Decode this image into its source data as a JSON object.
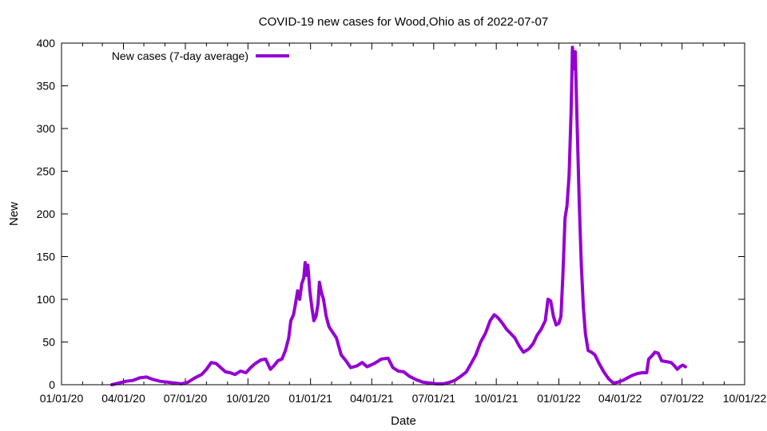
{
  "chart_data": {
    "type": "line",
    "title": "COVID-19 new cases for Wood,Ohio as of 2022-07-07",
    "xlabel": "Date",
    "ylabel": "New",
    "xlim": [
      "2020-01-01",
      "2022-10-01"
    ],
    "ylim": [
      0,
      400
    ],
    "x_ticks": [
      "01/01/20",
      "04/01/20",
      "07/01/20",
      "10/01/20",
      "01/01/21",
      "04/01/21",
      "07/01/21",
      "10/01/21",
      "01/01/22",
      "04/01/22",
      "07/01/22",
      "10/01/22"
    ],
    "x_tick_dates": [
      "2020-01-01",
      "2020-04-01",
      "2020-07-01",
      "2020-10-01",
      "2021-01-01",
      "2021-04-01",
      "2021-07-01",
      "2021-10-01",
      "2022-01-01",
      "2022-04-01",
      "2022-07-01",
      "2022-10-01"
    ],
    "y_ticks": [
      "0",
      "50",
      "100",
      "150",
      "200",
      "250",
      "300",
      "350",
      "400"
    ],
    "y_tick_values": [
      0,
      50,
      100,
      150,
      200,
      250,
      300,
      350,
      400
    ],
    "grid": false,
    "legend": {
      "placement": "top-left"
    },
    "series": [
      {
        "name": "New cases (7-day average)",
        "color": "#9400d3",
        "points": [
          [
            "2020-03-15",
            0
          ],
          [
            "2020-03-25",
            2
          ],
          [
            "2020-04-05",
            4
          ],
          [
            "2020-04-15",
            5
          ],
          [
            "2020-04-25",
            8
          ],
          [
            "2020-05-05",
            9
          ],
          [
            "2020-05-15",
            6
          ],
          [
            "2020-05-25",
            4
          ],
          [
            "2020-06-05",
            3
          ],
          [
            "2020-06-15",
            2
          ],
          [
            "2020-06-25",
            1
          ],
          [
            "2020-07-05",
            3
          ],
          [
            "2020-07-15",
            8
          ],
          [
            "2020-07-25",
            12
          ],
          [
            "2020-08-01",
            18
          ],
          [
            "2020-08-08",
            26
          ],
          [
            "2020-08-15",
            25
          ],
          [
            "2020-08-22",
            20
          ],
          [
            "2020-08-29",
            15
          ],
          [
            "2020-09-05",
            14
          ],
          [
            "2020-09-12",
            12
          ],
          [
            "2020-09-20",
            16
          ],
          [
            "2020-09-28",
            14
          ],
          [
            "2020-10-05",
            20
          ],
          [
            "2020-10-12",
            25
          ],
          [
            "2020-10-20",
            29
          ],
          [
            "2020-10-27",
            30
          ],
          [
            "2020-11-03",
            18
          ],
          [
            "2020-11-08",
            22
          ],
          [
            "2020-11-14",
            28
          ],
          [
            "2020-11-20",
            30
          ],
          [
            "2020-11-25",
            40
          ],
          [
            "2020-11-30",
            55
          ],
          [
            "2020-12-03",
            75
          ],
          [
            "2020-12-07",
            82
          ],
          [
            "2020-12-10",
            95
          ],
          [
            "2020-12-13",
            110
          ],
          [
            "2020-12-16",
            100
          ],
          [
            "2020-12-19",
            118
          ],
          [
            "2020-12-22",
            125
          ],
          [
            "2020-12-24",
            143
          ],
          [
            "2020-12-26",
            128
          ],
          [
            "2020-12-28",
            140
          ],
          [
            "2020-12-31",
            110
          ],
          [
            "2021-01-03",
            90
          ],
          [
            "2021-01-06",
            75
          ],
          [
            "2021-01-09",
            80
          ],
          [
            "2021-01-12",
            95
          ],
          [
            "2021-01-14",
            120
          ],
          [
            "2021-01-17",
            108
          ],
          [
            "2021-01-20",
            100
          ],
          [
            "2021-01-24",
            80
          ],
          [
            "2021-01-28",
            68
          ],
          [
            "2021-02-02",
            62
          ],
          [
            "2021-02-08",
            55
          ],
          [
            "2021-02-15",
            35
          ],
          [
            "2021-02-22",
            28
          ],
          [
            "2021-03-01",
            20
          ],
          [
            "2021-03-10",
            22
          ],
          [
            "2021-03-18",
            26
          ],
          [
            "2021-03-25",
            21
          ],
          [
            "2021-04-05",
            25
          ],
          [
            "2021-04-15",
            30
          ],
          [
            "2021-04-25",
            31
          ],
          [
            "2021-05-02",
            20
          ],
          [
            "2021-05-10",
            16
          ],
          [
            "2021-05-18",
            15
          ],
          [
            "2021-05-26",
            10
          ],
          [
            "2021-06-05",
            6
          ],
          [
            "2021-06-15",
            3
          ],
          [
            "2021-06-25",
            2
          ],
          [
            "2021-07-05",
            1
          ],
          [
            "2021-07-15",
            1
          ],
          [
            "2021-07-25",
            3
          ],
          [
            "2021-08-01",
            5
          ],
          [
            "2021-08-10",
            10
          ],
          [
            "2021-08-18",
            15
          ],
          [
            "2021-08-25",
            25
          ],
          [
            "2021-09-01",
            35
          ],
          [
            "2021-09-08",
            50
          ],
          [
            "2021-09-15",
            60
          ],
          [
            "2021-09-22",
            75
          ],
          [
            "2021-09-28",
            82
          ],
          [
            "2021-10-04",
            78
          ],
          [
            "2021-10-10",
            72
          ],
          [
            "2021-10-16",
            65
          ],
          [
            "2021-10-22",
            60
          ],
          [
            "2021-10-28",
            55
          ],
          [
            "2021-11-04",
            45
          ],
          [
            "2021-11-10",
            38
          ],
          [
            "2021-11-18",
            42
          ],
          [
            "2021-11-24",
            48
          ],
          [
            "2021-11-30",
            58
          ],
          [
            "2021-12-06",
            65
          ],
          [
            "2021-12-12",
            75
          ],
          [
            "2021-12-16",
            100
          ],
          [
            "2021-12-20",
            98
          ],
          [
            "2021-12-24",
            80
          ],
          [
            "2021-12-28",
            70
          ],
          [
            "2022-01-01",
            72
          ],
          [
            "2022-01-04",
            80
          ],
          [
            "2022-01-07",
            130
          ],
          [
            "2022-01-10",
            195
          ],
          [
            "2022-01-13",
            210
          ],
          [
            "2022-01-16",
            245
          ],
          [
            "2022-01-19",
            320
          ],
          [
            "2022-01-21",
            395
          ],
          [
            "2022-01-23",
            370
          ],
          [
            "2022-01-25",
            390
          ],
          [
            "2022-01-28",
            300
          ],
          [
            "2022-01-31",
            210
          ],
          [
            "2022-02-03",
            140
          ],
          [
            "2022-02-06",
            90
          ],
          [
            "2022-02-09",
            60
          ],
          [
            "2022-02-13",
            40
          ],
          [
            "2022-02-18",
            38
          ],
          [
            "2022-02-23",
            35
          ],
          [
            "2022-03-01",
            25
          ],
          [
            "2022-03-08",
            15
          ],
          [
            "2022-03-15",
            7
          ],
          [
            "2022-03-22",
            2
          ],
          [
            "2022-03-29",
            3
          ],
          [
            "2022-04-05",
            5
          ],
          [
            "2022-04-12",
            8
          ],
          [
            "2022-04-19",
            11
          ],
          [
            "2022-04-26",
            13
          ],
          [
            "2022-05-03",
            14
          ],
          [
            "2022-05-10",
            14
          ],
          [
            "2022-05-13",
            30
          ],
          [
            "2022-05-18",
            34
          ],
          [
            "2022-05-22",
            38
          ],
          [
            "2022-05-27",
            37
          ],
          [
            "2022-06-01",
            28
          ],
          [
            "2022-06-08",
            27
          ],
          [
            "2022-06-15",
            26
          ],
          [
            "2022-06-20",
            22
          ],
          [
            "2022-06-24",
            18
          ],
          [
            "2022-06-28",
            21
          ],
          [
            "2022-07-02",
            23
          ],
          [
            "2022-07-06",
            21
          ]
        ]
      }
    ]
  }
}
